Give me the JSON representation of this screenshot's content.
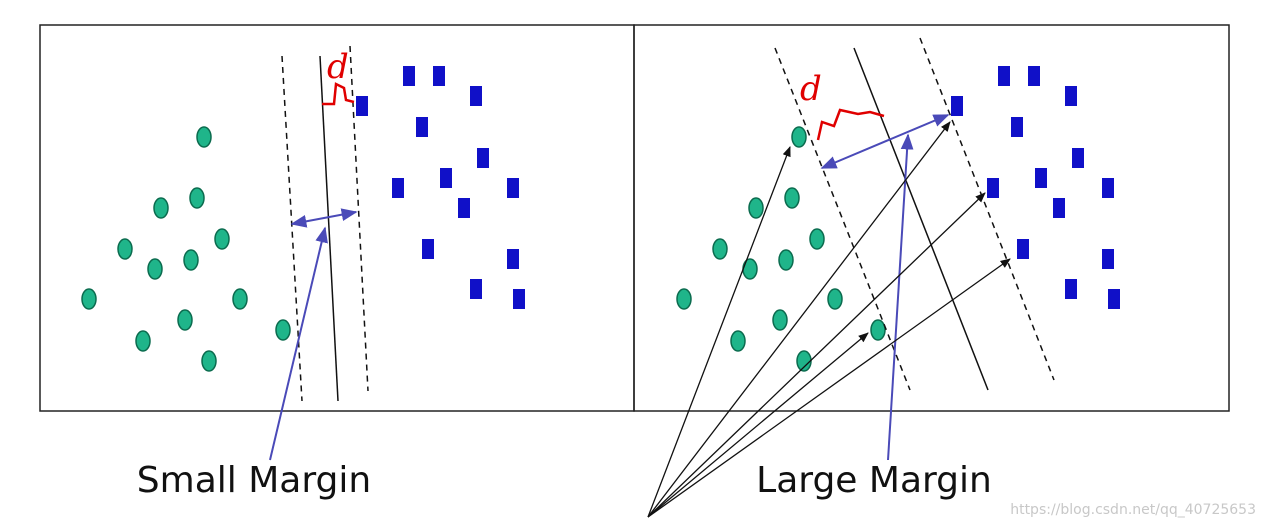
{
  "panels": [
    {
      "label": "Small Margin",
      "annotation": "d"
    },
    {
      "label": "Large Margin",
      "annotation": "d"
    }
  ],
  "watermark": "https://blog.csdn.net/qq_40725653"
}
